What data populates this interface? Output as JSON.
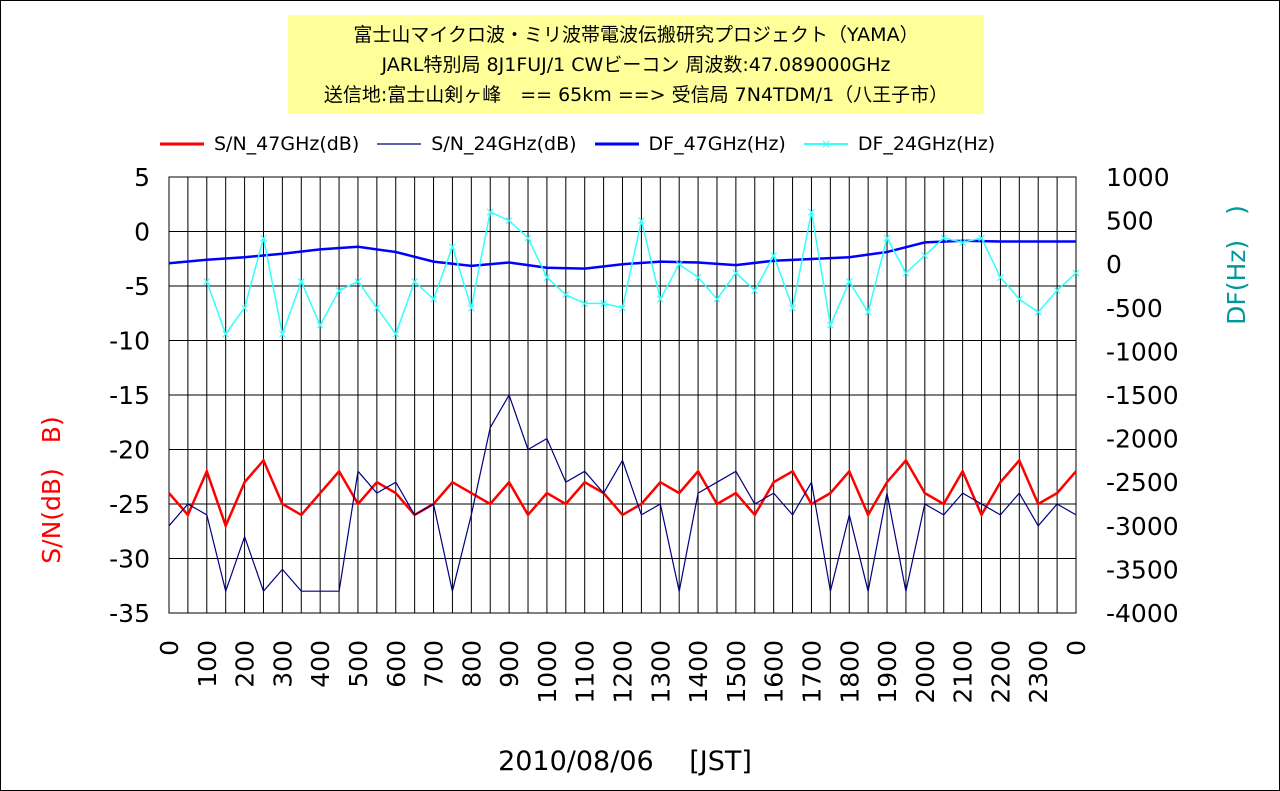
{
  "chart_data": {
    "type": "line",
    "title_lines": [
      "富士山マイクロ波・ミリ波帯電波伝搬研究プロジェクト（YAMA）",
      "JARL特別局 8J1FUJ/1 CWビーコン 周波数:47.089000GHz",
      "送信地:富士山剣ヶ峰　== 65km ==> 受信局 7N4TDM/1（八王子市）"
    ],
    "xlabel": "2010/08/06　 [JST]",
    "ylabel_left": "S/N(dB)　B)",
    "ylabel_right": "DF(Hz)　)",
    "x_ticks": [
      "0",
      "100",
      "200",
      "300",
      "400",
      "500",
      "600",
      "700",
      "800",
      "900",
      "1000",
      "1100",
      "1200",
      "1300",
      "1400",
      "1500",
      "1600",
      "1700",
      "1800",
      "1900",
      "2000",
      "2100",
      "2200",
      "2300",
      "0"
    ],
    "ylim_left": [
      -35,
      5
    ],
    "y_ticks_left": [
      "5",
      "0",
      "-5",
      "-10",
      "-15",
      "-20",
      "-25",
      "-30",
      "-35"
    ],
    "ylim_right": [
      -4000,
      1000
    ],
    "y_ticks_right": [
      "1000",
      "500",
      "0",
      "-500",
      "-1000",
      "-1500",
      "-2000",
      "-2500",
      "-3000",
      "-3500",
      "-4000"
    ],
    "legend_position": "top",
    "grid": true,
    "series": [
      {
        "name": "S/N_47GHz(dB)",
        "axis": "left",
        "color": "#ff0000",
        "x": [
          0,
          0.5,
          1,
          1.5,
          2,
          2.5,
          3,
          3.5,
          4,
          4.5,
          5,
          5.5,
          6,
          6.5,
          7,
          7.5,
          8,
          8.5,
          9,
          9.5,
          10,
          10.5,
          11,
          11.5,
          12,
          12.5,
          13,
          13.5,
          14,
          14.5,
          15,
          15.5,
          16,
          16.5,
          17,
          17.5,
          18,
          18.5,
          19,
          19.5,
          20,
          20.5,
          21,
          21.5,
          22,
          22.5,
          23,
          23.5,
          24
        ],
        "values": [
          -24,
          -26,
          -22,
          -27,
          -23,
          -21,
          -25,
          -26,
          -24,
          -22,
          -25,
          -23,
          -24,
          -26,
          -25,
          -23,
          -24,
          -25,
          -23,
          -26,
          -24,
          -25,
          -23,
          -24,
          -26,
          -25,
          -23,
          -24,
          -22,
          -25,
          -24,
          -26,
          -23,
          -22,
          -25,
          -24,
          -22,
          -26,
          -23,
          -21,
          -24,
          -25,
          -22,
          -26,
          -23,
          -21,
          -25,
          -24,
          -22
        ]
      },
      {
        "name": "S/N_24GHz(dB)",
        "axis": "left",
        "color": "#000080",
        "x": [
          0,
          0.5,
          1,
          1.5,
          2,
          2.5,
          3,
          3.5,
          4,
          4.5,
          5,
          5.5,
          6,
          6.5,
          7,
          7.5,
          8,
          8.5,
          9,
          9.5,
          10,
          10.5,
          11,
          11.5,
          12,
          12.5,
          13,
          13.5,
          14,
          14.5,
          15,
          15.5,
          16,
          16.5,
          17,
          17.5,
          18,
          18.5,
          19,
          19.5,
          20,
          20.5,
          21,
          21.5,
          22,
          22.5,
          23,
          23.5,
          24
        ],
        "values": [
          -27,
          -25,
          -26,
          -33,
          -28,
          -33,
          -31,
          -33,
          -33,
          -33,
          -22,
          -24,
          -23,
          -26,
          -25,
          -33,
          -26,
          -18,
          -15,
          -20,
          -19,
          -23,
          -22,
          -24,
          -21,
          -26,
          -25,
          -33,
          -24,
          -23,
          -22,
          -25,
          -24,
          -26,
          -23,
          -33,
          -26,
          -33,
          -24,
          -33,
          -25,
          -26,
          -24,
          -25,
          -26,
          -24,
          -27,
          -25,
          -26
        ]
      },
      {
        "name": "DF_47GHz(Hz)",
        "axis": "right",
        "color": "#0000ff",
        "x": [
          0,
          1,
          2,
          3,
          4,
          5,
          6,
          7,
          8,
          9,
          10,
          11,
          12,
          13,
          14,
          15,
          16,
          17,
          18,
          19,
          20,
          21,
          22,
          23,
          24
        ],
        "values": [
          10,
          50,
          80,
          120,
          170,
          200,
          140,
          30,
          -20,
          20,
          -40,
          -50,
          0,
          30,
          20,
          -10,
          40,
          60,
          80,
          140,
          250,
          270,
          260,
          260,
          260
        ]
      },
      {
        "name": "DF_24GHz(Hz)",
        "axis": "right",
        "color": "#33ffff",
        "x": [
          1,
          1.5,
          2,
          2.5,
          3,
          3.5,
          4,
          4.5,
          5,
          5.5,
          6,
          6.5,
          7,
          7.5,
          8,
          8.5,
          9,
          9.5,
          10,
          10.5,
          11,
          11.5,
          12,
          12.5,
          13,
          13.5,
          14,
          14.5,
          15,
          15.5,
          16,
          16.5,
          17,
          17.5,
          18,
          18.5,
          19,
          19.5,
          20,
          20.5,
          21,
          21.5,
          22,
          22.5,
          23,
          23.5,
          24
        ],
        "values": [
          -200,
          -800,
          -500,
          300,
          -800,
          -200,
          -700,
          -300,
          -200,
          -500,
          -800,
          -200,
          -400,
          200,
          -500,
          600,
          500,
          300,
          -150,
          -350,
          -450,
          -450,
          -500,
          500,
          -400,
          0,
          -150,
          -400,
          -100,
          -300,
          100,
          -500,
          600,
          -700,
          -200,
          -550,
          300,
          -100,
          100,
          300,
          250,
          300,
          -150,
          -400,
          -550,
          -300,
          -100
        ]
      }
    ]
  }
}
